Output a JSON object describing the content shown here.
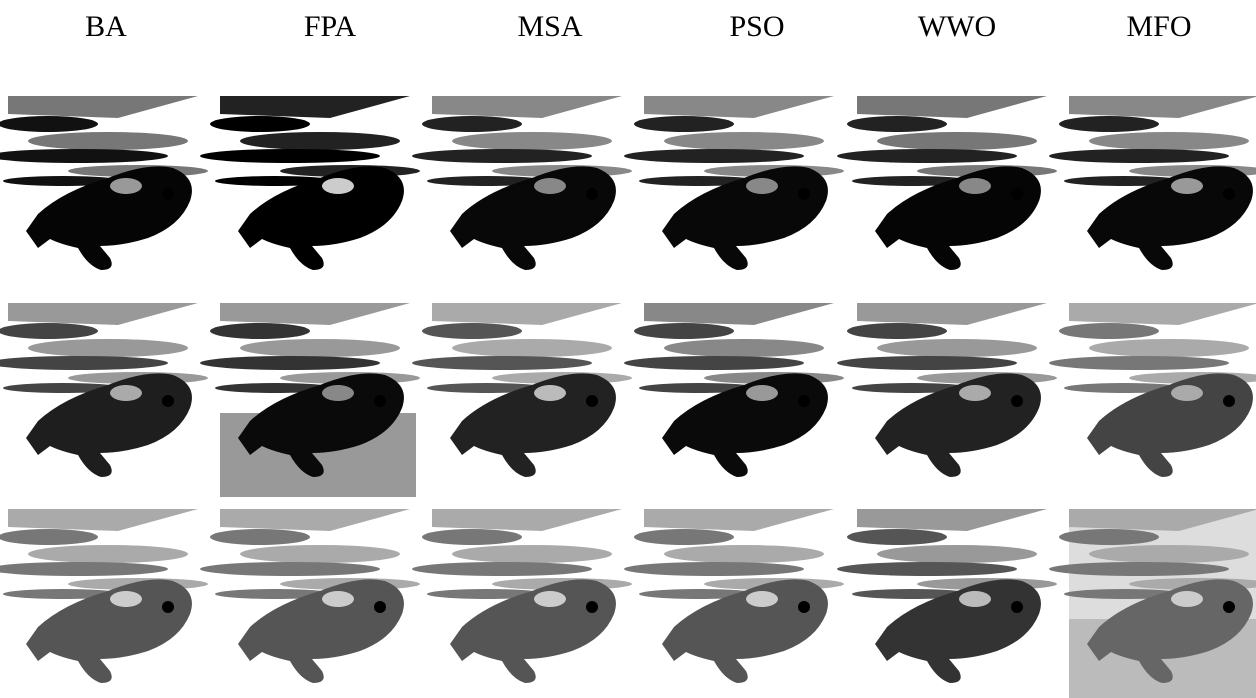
{
  "columns": [
    "BA",
    "FPA",
    "MSA",
    "PSO",
    "WWO",
    "MFO"
  ]
}
